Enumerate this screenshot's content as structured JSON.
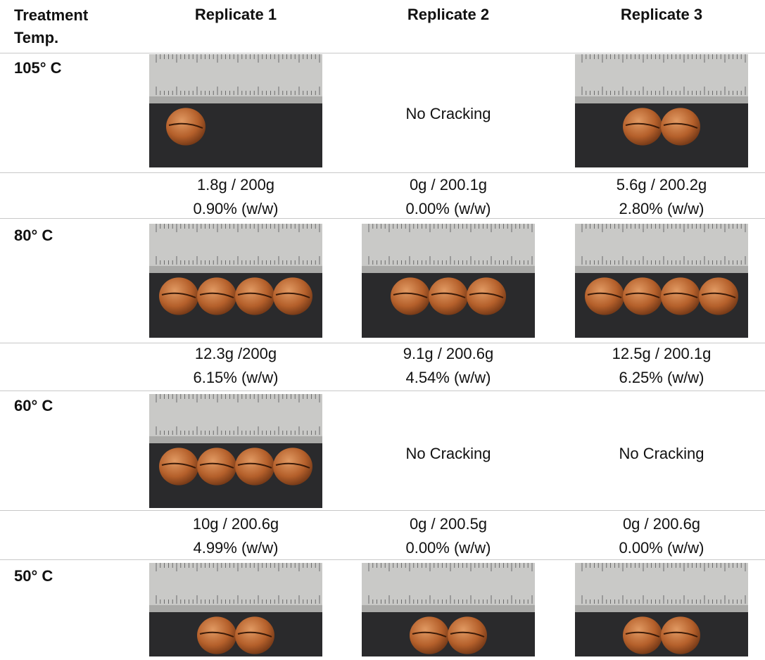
{
  "table": {
    "header": [
      "Treatment Temp.",
      "Replicate 1",
      "Replicate 2",
      "Replicate 3"
    ],
    "rows": [
      {
        "temp": "105° C",
        "no_cracking": {
          "replicate_2": "No Cracking"
        },
        "results": [
          [
            "1.8g / 200g",
            "0.90% (w/w)"
          ],
          [
            "0g / 200.1g",
            "0.00% (w/w)"
          ],
          [
            "5.6g / 200.2g",
            "2.80% (w/w)"
          ]
        ]
      },
      {
        "temp": "80° C",
        "results": [
          [
            "12.3g /200g",
            "6.15% (w/w)"
          ],
          [
            "9.1g / 200.6g",
            "4.54% (w/w)"
          ],
          [
            "12.5g / 200.1g",
            "6.25% (w/w)"
          ]
        ]
      },
      {
        "temp": "60° C",
        "no_cracking": {
          "replicate_2": "No Cracking",
          "replicate_3": "No Cracking"
        },
        "results": [
          [
            "10g / 200.6g",
            "4.99% (w/w)"
          ],
          [
            "0g / 200.5g",
            "0.00% (w/w)"
          ],
          [
            "0g / 200.6g",
            "0.00% (w/w)"
          ]
        ]
      },
      {
        "temp": "50° C"
      }
    ]
  }
}
